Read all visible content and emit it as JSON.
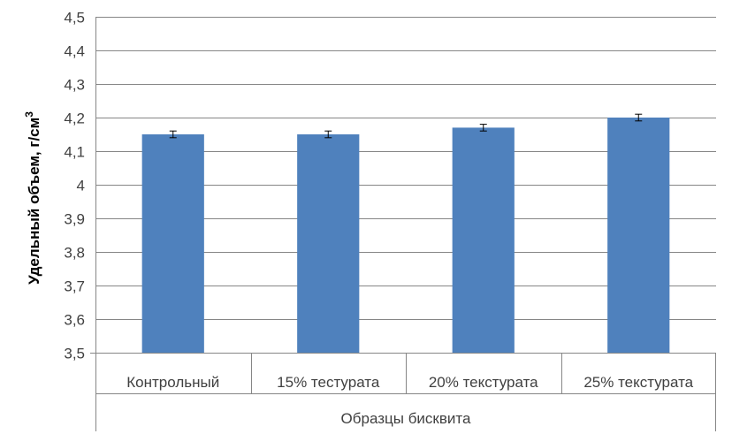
{
  "chart_data": {
    "type": "bar",
    "categories": [
      "Контрольный",
      "15% тестурата",
      "20% текстурата",
      "25% текстурата"
    ],
    "values": [
      4.15,
      4.15,
      4.17,
      4.2
    ],
    "error": [
      0.01,
      0.01,
      0.01,
      0.01
    ],
    "xlabel": "Образцы бисквита",
    "ylabel_text": "Удельный объем, г/см",
    "ylabel_sup": "3",
    "ylim": [
      3.5,
      4.5
    ],
    "ytick_step": 0.1,
    "yticks": [
      "3,5",
      "3,6",
      "3,7",
      "3,8",
      "3,9",
      "4",
      "4,1",
      "4,2",
      "4,3",
      "4,4",
      "4,5"
    ],
    "grid": true,
    "legend": "none",
    "colors": {
      "bar": "#4F81BD",
      "grid": "#868686",
      "axis": "#868686",
      "error": "#000000"
    }
  }
}
